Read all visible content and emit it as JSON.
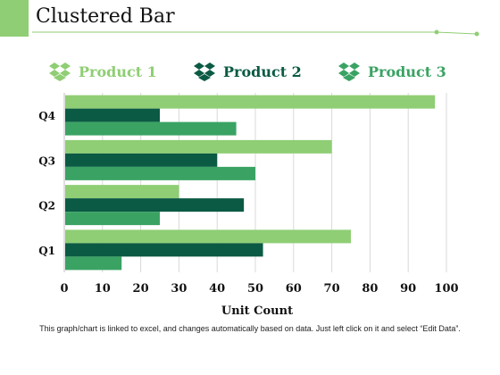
{
  "slide": {
    "title": "Clustered Bar",
    "footnote": "This graph/chart is linked to excel, and changes automatically based on data. Just left click on it and select “Edit Data”."
  },
  "legend": {
    "icon": "dropbox-icon",
    "items": [
      {
        "label": "Product 1",
        "color": "#8fce74"
      },
      {
        "label": "Product 2",
        "color": "#0b5a44"
      },
      {
        "label": "Product 3",
        "color": "#3aa363"
      }
    ]
  },
  "chart_data": {
    "type": "bar",
    "orientation": "horizontal",
    "title": "",
    "xlabel": "Unit Count",
    "ylabel": "",
    "xlim": [
      0,
      100
    ],
    "x_ticks": [
      0,
      10,
      20,
      30,
      40,
      50,
      60,
      70,
      80,
      90,
      100
    ],
    "grid": "vertical",
    "legend_position": "top",
    "categories": [
      "Q1",
      "Q2",
      "Q3",
      "Q4"
    ],
    "series": [
      {
        "name": "Product 1",
        "color": "#8fce74",
        "values": [
          75,
          30,
          70,
          97
        ]
      },
      {
        "name": "Product 2",
        "color": "#0b5a44",
        "values": [
          52,
          47,
          40,
          25
        ]
      },
      {
        "name": "Product 3",
        "color": "#3aa363",
        "values": [
          15,
          25,
          50,
          45
        ]
      }
    ]
  }
}
